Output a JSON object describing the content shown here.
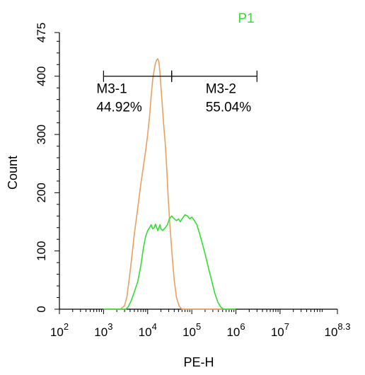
{
  "chart_data": {
    "type": "line",
    "title": "P1",
    "title_color": "#33dd33",
    "xlabel": "PE-H",
    "ylabel": "Count",
    "x_scale": "log",
    "xlim": [
      100,
      199526231
    ],
    "ylim": [
      0,
      475
    ],
    "y_ticks": [
      0,
      100,
      200,
      300,
      400,
      475
    ],
    "y_tick_labels": [
      "0",
      "100",
      "200",
      "300",
      "400",
      "475"
    ],
    "x_tick_labels": [
      {
        "base": "10",
        "exp": "2"
      },
      {
        "base": "10",
        "exp": "3"
      },
      {
        "base": "10",
        "exp": "4"
      },
      {
        "base": "10",
        "exp": "5"
      },
      {
        "base": "10",
        "exp": "6"
      },
      {
        "base": "10",
        "exp": "7"
      },
      {
        "base": "10",
        "exp": "8.3"
      }
    ],
    "x_tick_exponents": [
      2,
      3,
      4,
      5,
      6,
      7,
      8.3
    ],
    "grid": false,
    "series": [
      {
        "color": "#e8a060",
        "points": [
          [
            1000,
            0
          ],
          [
            2400,
            0
          ],
          [
            3000,
            6
          ],
          [
            3400,
            22
          ],
          [
            3800,
            50
          ],
          [
            4300,
            85
          ],
          [
            5000,
            130
          ],
          [
            6000,
            175
          ],
          [
            7000,
            215
          ],
          [
            8000,
            245
          ],
          [
            9000,
            272
          ],
          [
            10000,
            300
          ],
          [
            11000,
            330
          ],
          [
            12000,
            365
          ],
          [
            13000,
            395
          ],
          [
            14000,
            410
          ],
          [
            15000,
            422
          ],
          [
            16000,
            428
          ],
          [
            17000,
            430
          ],
          [
            18000,
            424
          ],
          [
            19000,
            405
          ],
          [
            20000,
            382
          ],
          [
            21500,
            350
          ],
          [
            23000,
            318
          ],
          [
            25000,
            285
          ],
          [
            27000,
            242
          ],
          [
            29000,
            195
          ],
          [
            32000,
            142
          ],
          [
            36000,
            90
          ],
          [
            40000,
            50
          ],
          [
            45000,
            20
          ],
          [
            52000,
            5
          ],
          [
            60000,
            0
          ],
          [
            1000000,
            0
          ]
        ]
      },
      {
        "color": "#33dd33",
        "points": [
          [
            1000,
            0
          ],
          [
            3200,
            0
          ],
          [
            3600,
            4
          ],
          [
            4200,
            14
          ],
          [
            5000,
            30
          ],
          [
            6000,
            48
          ],
          [
            7000,
            75
          ],
          [
            8000,
            105
          ],
          [
            9000,
            125
          ],
          [
            10000,
            135
          ],
          [
            11000,
            140
          ],
          [
            12000,
            145
          ],
          [
            13000,
            138
          ],
          [
            14000,
            140
          ],
          [
            15000,
            146
          ],
          [
            16000,
            140
          ],
          [
            17000,
            135
          ],
          [
            18000,
            140
          ],
          [
            19000,
            145
          ],
          [
            20000,
            138
          ],
          [
            22000,
            135
          ],
          [
            25000,
            140
          ],
          [
            28000,
            145
          ],
          [
            31000,
            155
          ],
          [
            35000,
            160
          ],
          [
            40000,
            155
          ],
          [
            45000,
            152
          ],
          [
            50000,
            155
          ],
          [
            55000,
            150
          ],
          [
            60000,
            155
          ],
          [
            70000,
            162
          ],
          [
            80000,
            160
          ],
          [
            90000,
            155
          ],
          [
            100000,
            158
          ],
          [
            115000,
            152
          ],
          [
            130000,
            145
          ],
          [
            150000,
            130
          ],
          [
            170000,
            115
          ],
          [
            200000,
            95
          ],
          [
            240000,
            70
          ],
          [
            280000,
            50
          ],
          [
            330000,
            28
          ],
          [
            390000,
            12
          ],
          [
            450000,
            4
          ],
          [
            520000,
            0
          ],
          [
            1000000,
            0
          ]
        ]
      }
    ],
    "markers": [
      {
        "label": "M3-1",
        "percent": "44.92%",
        "from": 1000,
        "to": 35000,
        "y": 400
      },
      {
        "label": "M3-2",
        "percent": "55.04%",
        "from": 35000,
        "to": 3000000,
        "y": 400
      }
    ]
  }
}
